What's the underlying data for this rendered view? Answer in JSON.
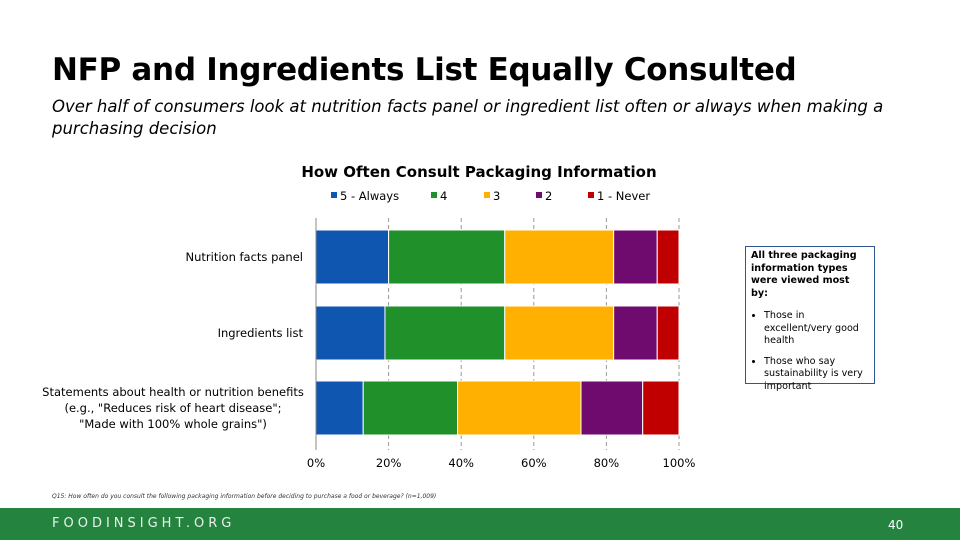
{
  "title": "NFP and Ingredients List Equally Consulted",
  "subtitle": "Over half of consumers look at nutrition facts panel or ingredient list often or always when making a purchasing decision",
  "chart_data": {
    "type": "bar",
    "orientation": "horizontal",
    "stacked": true,
    "percent_stacked": true,
    "title": "How Often Consult Packaging Information",
    "categories": [
      [
        "Nutrition facts panel"
      ],
      [
        "Ingredients list"
      ],
      [
        "Statements about health or nutrition benefits",
        "(e.g., \"Reduces risk of heart disease\";",
        "\"Made with 100% whole grains\")"
      ]
    ],
    "series": [
      {
        "name": "5 - Always",
        "color": "#0f56b0",
        "values": [
          20,
          19,
          13
        ]
      },
      {
        "name": "4",
        "color": "#20902a",
        "values": [
          32,
          33,
          26
        ]
      },
      {
        "name": "3",
        "color": "#ffb000",
        "values": [
          30,
          30,
          34
        ]
      },
      {
        "name": "2",
        "color": "#6f0a6f",
        "values": [
          12,
          12,
          17
        ]
      },
      {
        "name": "1 - Never",
        "color": "#c00000",
        "values": [
          6,
          6,
          10
        ]
      }
    ],
    "xlim": [
      0,
      100
    ],
    "xticks": [
      "0%",
      "20%",
      "40%",
      "60%",
      "80%",
      "100%"
    ],
    "gridlines": "vertical dashed",
    "legend_position": "top"
  },
  "callout": {
    "heading": "All three packaging information types were viewed most by:",
    "bullets": [
      "Those in excellent/very good health",
      "Those who say sustainability is very important"
    ]
  },
  "footnote": "Q15: How often do you consult the following packaging information before deciding to purchase a food or beverage? (n=1,009)",
  "footer": {
    "brand": "FOODINSIGHT.ORG",
    "page": "40",
    "color": "#24843f"
  }
}
